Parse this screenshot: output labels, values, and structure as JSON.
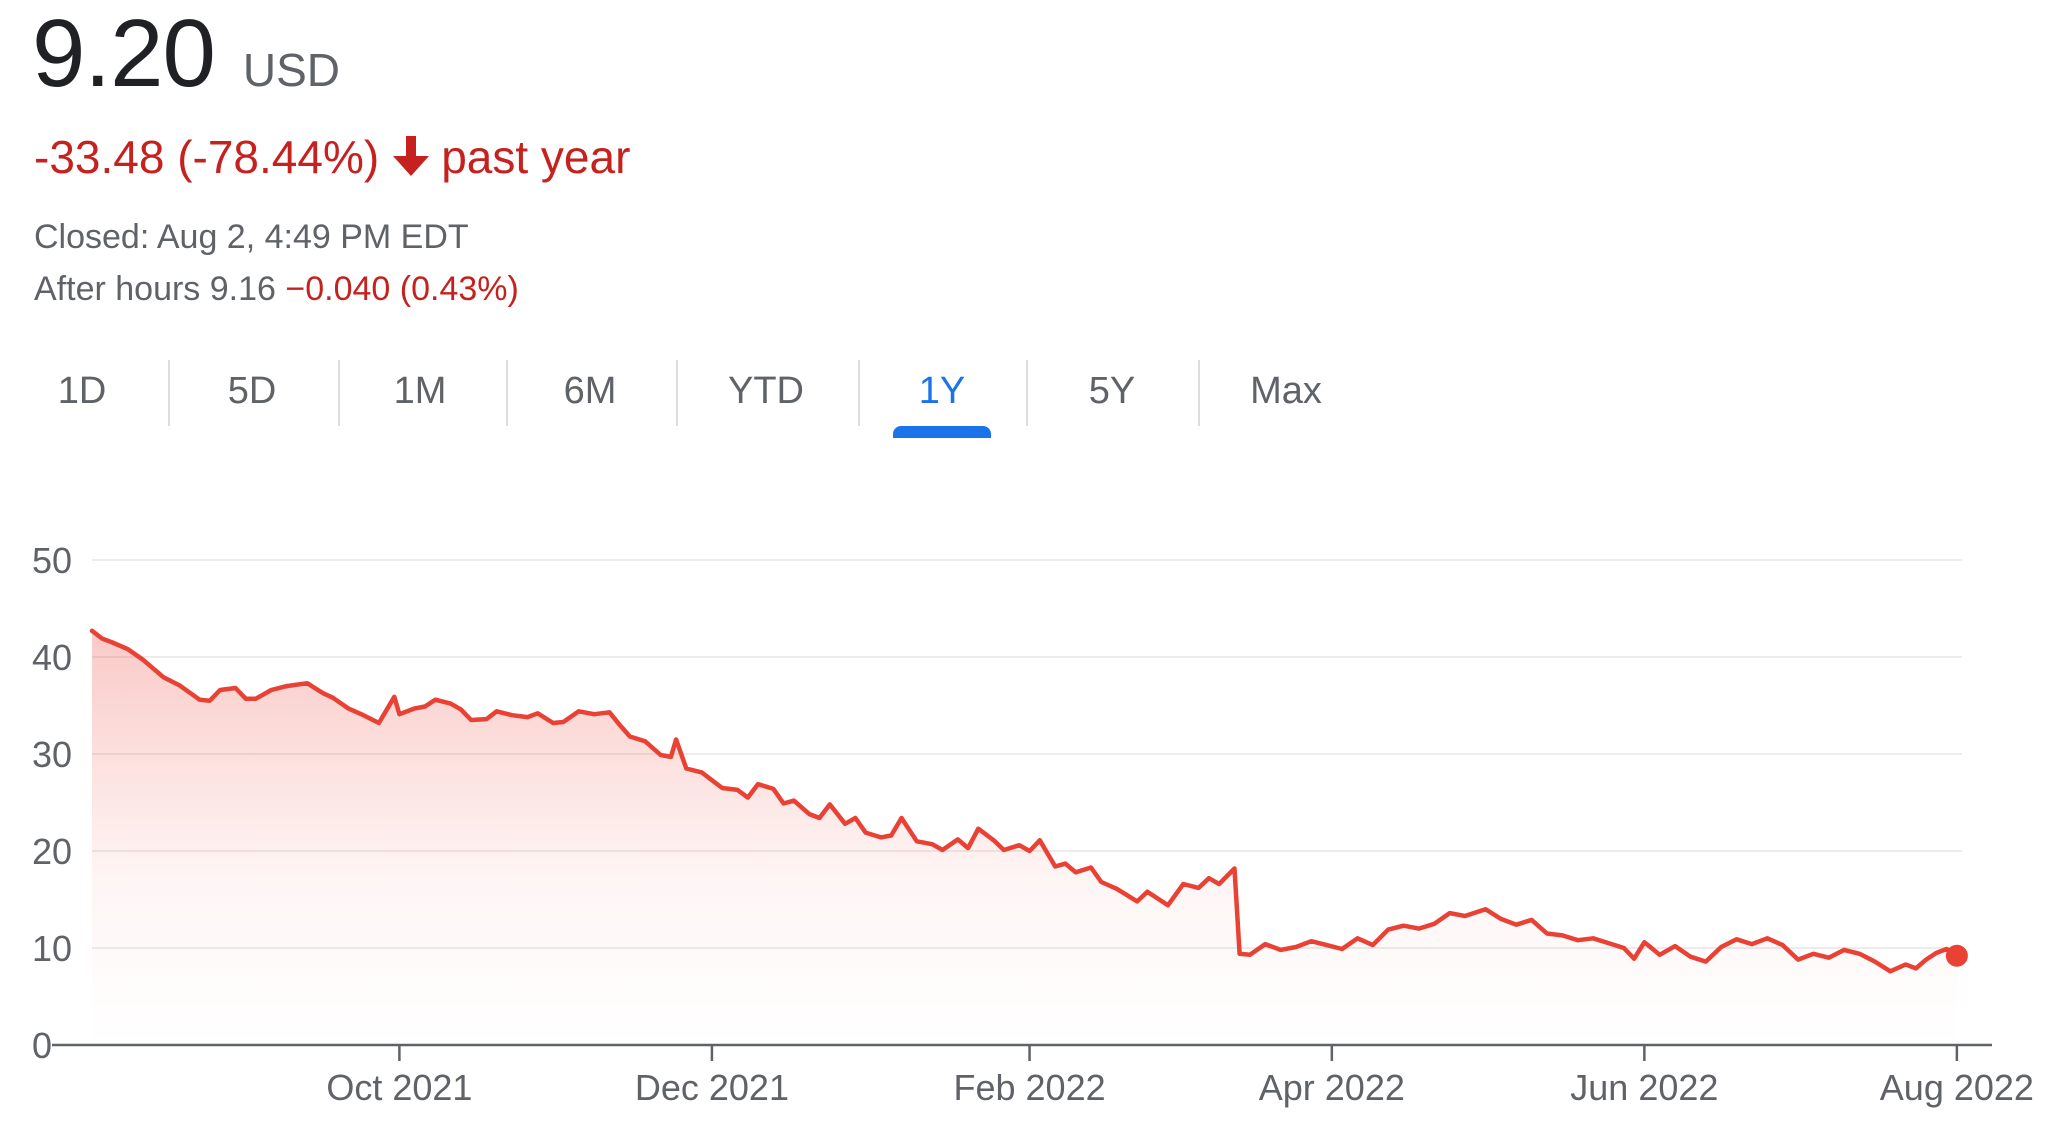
{
  "quote": {
    "price": "9.20",
    "currency": "USD",
    "change_text": "-33.48 (-78.44%)",
    "change_period": "past year",
    "closed_text": "Closed: Aug 2, 4:49 PM EDT",
    "after_hours_label": "After hours 9.16",
    "after_hours_change": "−0.040 (0.43%)",
    "negative_color": "#c5221f",
    "arrow_icon": "arrow-down-icon"
  },
  "tabs": [
    {
      "label": "1D",
      "active": false
    },
    {
      "label": "5D",
      "active": false
    },
    {
      "label": "1M",
      "active": false
    },
    {
      "label": "6M",
      "active": false
    },
    {
      "label": "YTD",
      "active": false
    },
    {
      "label": "1Y",
      "active": true
    },
    {
      "label": "5Y",
      "active": false
    },
    {
      "label": "Max",
      "active": false
    }
  ],
  "chart_data": {
    "type": "line",
    "title": "",
    "xlabel": "",
    "ylabel": "",
    "ylim": [
      0,
      50
    ],
    "yticks": [
      0,
      10,
      20,
      30,
      40,
      50
    ],
    "xlim": [
      "2021-08-02",
      "2022-08-02"
    ],
    "xticks": [
      {
        "label": "Oct 2021",
        "date": "2021-10-01"
      },
      {
        "label": "Dec 2021",
        "date": "2021-12-01"
      },
      {
        "label": "Feb 2022",
        "date": "2022-02-01"
      },
      {
        "label": "Apr 2022",
        "date": "2022-04-01"
      },
      {
        "label": "Jun 2022",
        "date": "2022-06-01"
      },
      {
        "label": "Aug 2022",
        "date": "2022-08-01"
      }
    ],
    "grid": true,
    "legend": "none",
    "line_color": "#e94235",
    "series": [
      {
        "points": [
          [
            "2021-08-02",
            42.7
          ],
          [
            "2021-08-04",
            41.9
          ],
          [
            "2021-08-06",
            41.5
          ],
          [
            "2021-08-09",
            40.8
          ],
          [
            "2021-08-12",
            39.7
          ],
          [
            "2021-08-16",
            37.9
          ],
          [
            "2021-08-19",
            37.1
          ],
          [
            "2021-08-23",
            35.6
          ],
          [
            "2021-08-25",
            35.5
          ],
          [
            "2021-08-27",
            36.6
          ],
          [
            "2021-08-30",
            36.8
          ],
          [
            "2021-09-01",
            35.7
          ],
          [
            "2021-09-03",
            35.7
          ],
          [
            "2021-09-06",
            36.6
          ],
          [
            "2021-09-09",
            37.0
          ],
          [
            "2021-09-13",
            37.3
          ],
          [
            "2021-09-16",
            36.3
          ],
          [
            "2021-09-18",
            35.8
          ],
          [
            "2021-09-21",
            34.7
          ],
          [
            "2021-09-24",
            34.0
          ],
          [
            "2021-09-27",
            33.2
          ],
          [
            "2021-09-30",
            35.9
          ],
          [
            "2021-10-01",
            34.1
          ],
          [
            "2021-10-04",
            34.7
          ],
          [
            "2021-10-06",
            34.9
          ],
          [
            "2021-10-08",
            35.6
          ],
          [
            "2021-10-11",
            35.2
          ],
          [
            "2021-10-13",
            34.6
          ],
          [
            "2021-10-15",
            33.5
          ],
          [
            "2021-10-18",
            33.6
          ],
          [
            "2021-10-20",
            34.4
          ],
          [
            "2021-10-23",
            34.0
          ],
          [
            "2021-10-26",
            33.8
          ],
          [
            "2021-10-28",
            34.2
          ],
          [
            "2021-10-31",
            33.2
          ],
          [
            "2021-11-02",
            33.3
          ],
          [
            "2021-11-05",
            34.4
          ],
          [
            "2021-11-08",
            34.1
          ],
          [
            "2021-11-11",
            34.3
          ],
          [
            "2021-11-13",
            33.0
          ],
          [
            "2021-11-15",
            31.8
          ],
          [
            "2021-11-18",
            31.3
          ],
          [
            "2021-11-21",
            29.9
          ],
          [
            "2021-11-23",
            29.7
          ],
          [
            "2021-11-24",
            31.5
          ],
          [
            "2021-11-26",
            28.5
          ],
          [
            "2021-11-29",
            28.1
          ],
          [
            "2021-12-01",
            27.3
          ],
          [
            "2021-12-03",
            26.5
          ],
          [
            "2021-12-06",
            26.3
          ],
          [
            "2021-12-08",
            25.5
          ],
          [
            "2021-12-10",
            26.9
          ],
          [
            "2021-12-13",
            26.4
          ],
          [
            "2021-12-15",
            24.9
          ],
          [
            "2021-12-17",
            25.2
          ],
          [
            "2021-12-20",
            23.8
          ],
          [
            "2021-12-22",
            23.4
          ],
          [
            "2021-12-24",
            24.8
          ],
          [
            "2021-12-27",
            22.8
          ],
          [
            "2021-12-29",
            23.4
          ],
          [
            "2021-12-31",
            21.9
          ],
          [
            "2022-01-03",
            21.4
          ],
          [
            "2022-01-05",
            21.6
          ],
          [
            "2022-01-07",
            23.4
          ],
          [
            "2022-01-10",
            21.0
          ],
          [
            "2022-01-13",
            20.7
          ],
          [
            "2022-01-15",
            20.1
          ],
          [
            "2022-01-18",
            21.2
          ],
          [
            "2022-01-20",
            20.3
          ],
          [
            "2022-01-22",
            22.3
          ],
          [
            "2022-01-25",
            21.1
          ],
          [
            "2022-01-27",
            20.1
          ],
          [
            "2022-01-30",
            20.6
          ],
          [
            "2022-02-01",
            20.0
          ],
          [
            "2022-02-03",
            21.1
          ],
          [
            "2022-02-06",
            18.4
          ],
          [
            "2022-02-08",
            18.7
          ],
          [
            "2022-02-10",
            17.8
          ],
          [
            "2022-02-13",
            18.3
          ],
          [
            "2022-02-15",
            16.8
          ],
          [
            "2022-02-18",
            16.1
          ],
          [
            "2022-02-22",
            14.8
          ],
          [
            "2022-02-24",
            15.8
          ],
          [
            "2022-02-28",
            14.4
          ],
          [
            "2022-03-03",
            16.6
          ],
          [
            "2022-03-06",
            16.2
          ],
          [
            "2022-03-08",
            17.2
          ],
          [
            "2022-03-10",
            16.6
          ],
          [
            "2022-03-13",
            18.2
          ],
          [
            "2022-03-14",
            9.4
          ],
          [
            "2022-03-16",
            9.3
          ],
          [
            "2022-03-19",
            10.4
          ],
          [
            "2022-03-22",
            9.8
          ],
          [
            "2022-03-25",
            10.1
          ],
          [
            "2022-03-28",
            10.7
          ],
          [
            "2022-03-31",
            10.3
          ],
          [
            "2022-04-03",
            9.9
          ],
          [
            "2022-04-06",
            11.0
          ],
          [
            "2022-04-09",
            10.3
          ],
          [
            "2022-04-12",
            11.9
          ],
          [
            "2022-04-15",
            12.3
          ],
          [
            "2022-04-18",
            12.0
          ],
          [
            "2022-04-21",
            12.5
          ],
          [
            "2022-04-24",
            13.6
          ],
          [
            "2022-04-27",
            13.3
          ],
          [
            "2022-05-01",
            14.0
          ],
          [
            "2022-05-04",
            13.0
          ],
          [
            "2022-05-07",
            12.4
          ],
          [
            "2022-05-10",
            12.9
          ],
          [
            "2022-05-13",
            11.5
          ],
          [
            "2022-05-16",
            11.3
          ],
          [
            "2022-05-19",
            10.8
          ],
          [
            "2022-05-22",
            11.0
          ],
          [
            "2022-05-25",
            10.5
          ],
          [
            "2022-05-28",
            10.0
          ],
          [
            "2022-05-30",
            8.9
          ],
          [
            "2022-06-01",
            10.6
          ],
          [
            "2022-06-04",
            9.3
          ],
          [
            "2022-06-07",
            10.2
          ],
          [
            "2022-06-10",
            9.1
          ],
          [
            "2022-06-13",
            8.6
          ],
          [
            "2022-06-16",
            10.1
          ],
          [
            "2022-06-19",
            10.9
          ],
          [
            "2022-06-22",
            10.4
          ],
          [
            "2022-06-25",
            11.0
          ],
          [
            "2022-06-28",
            10.3
          ],
          [
            "2022-07-01",
            8.8
          ],
          [
            "2022-07-04",
            9.4
          ],
          [
            "2022-07-07",
            9.0
          ],
          [
            "2022-07-10",
            9.8
          ],
          [
            "2022-07-13",
            9.4
          ],
          [
            "2022-07-16",
            8.6
          ],
          [
            "2022-07-19",
            7.6
          ],
          [
            "2022-07-22",
            8.3
          ],
          [
            "2022-07-24",
            7.9
          ],
          [
            "2022-07-26",
            8.8
          ],
          [
            "2022-07-28",
            9.5
          ],
          [
            "2022-07-30",
            9.9
          ],
          [
            "2022-08-01",
            9.2
          ]
        ]
      }
    ]
  }
}
